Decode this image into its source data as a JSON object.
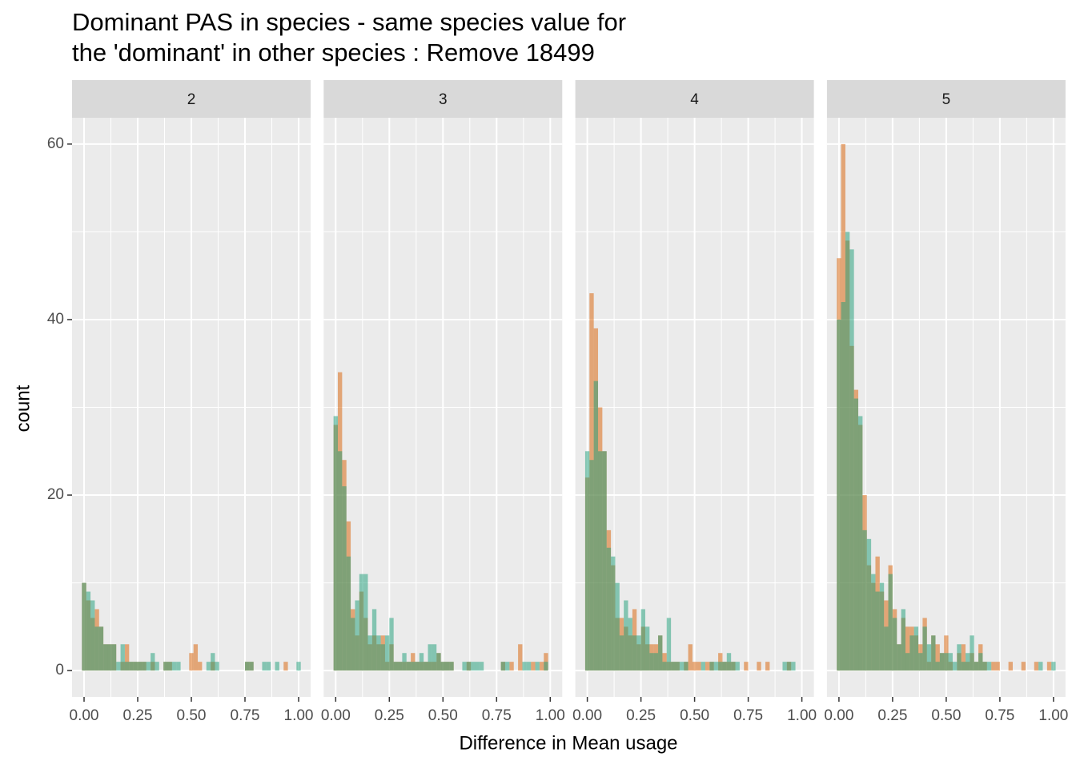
{
  "title": [
    "Dominant PAS in species - same species value for",
    "the 'dominant' in other species : Remove 18499"
  ],
  "x_label": "Difference in Mean usage",
  "y_label": "count",
  "chart_data": [
    {
      "type": "histogram",
      "facet": "2",
      "bins": [
        -0.01,
        0.01,
        0.03,
        0.05,
        0.07,
        0.09,
        0.11,
        0.13,
        0.15,
        0.17,
        0.19,
        0.21,
        0.23,
        0.25,
        0.27,
        0.29,
        0.31,
        0.33,
        0.35,
        0.37,
        0.39,
        0.41,
        0.43,
        0.45,
        0.47,
        0.49,
        0.51,
        0.53,
        0.55,
        0.57,
        0.59,
        0.61,
        0.63,
        0.65,
        0.67,
        0.69,
        0.71,
        0.73,
        0.75,
        0.77,
        0.79,
        0.81,
        0.83,
        0.85,
        0.87,
        0.89,
        0.91,
        0.93,
        0.95,
        0.97,
        0.99,
        1.01
      ],
      "series": [
        {
          "color": "#D95F02",
          "opacity": 0.5,
          "values": [
            10,
            8,
            6,
            7,
            5,
            3,
            3,
            3,
            0,
            1,
            3,
            1,
            1,
            1,
            1,
            0,
            1,
            0,
            0,
            1,
            1,
            0,
            0,
            0,
            0,
            2,
            3,
            1,
            0,
            0,
            1,
            0,
            0,
            0,
            0,
            0,
            0,
            0,
            1,
            1,
            0,
            0,
            0,
            0,
            0,
            0,
            0,
            1,
            0,
            0,
            0
          ]
        },
        {
          "color": "#1B9E77",
          "opacity": 0.5,
          "values": [
            10,
            9,
            8,
            5,
            5,
            3,
            3,
            3,
            1,
            3,
            1,
            1,
            1,
            1,
            1,
            1,
            2,
            1,
            0,
            1,
            1,
            1,
            1,
            0,
            0,
            0,
            0,
            0,
            0,
            1,
            2,
            1,
            0,
            0,
            0,
            0,
            0,
            0,
            1,
            1,
            0,
            0,
            1,
            1,
            0,
            1,
            0,
            0,
            0,
            0,
            1
          ]
        }
      ],
      "xlim": [
        -0.056,
        1.056
      ],
      "xticks": [
        {
          "value": 0,
          "label": "0.00"
        },
        {
          "value": 0.25,
          "label": "0.25"
        },
        {
          "value": 0.5,
          "label": "0.50"
        },
        {
          "value": 0.75,
          "label": "0.75"
        },
        {
          "value": 1,
          "label": "1.00"
        }
      ],
      "ylim": [
        -3,
        63
      ],
      "yticks": [
        0,
        20,
        40,
        60
      ],
      "grid": true,
      "minor_grid": true
    },
    {
      "type": "histogram",
      "facet": "3",
      "bins": [
        -0.01,
        0.01,
        0.03,
        0.05,
        0.07,
        0.09,
        0.11,
        0.13,
        0.15,
        0.17,
        0.19,
        0.21,
        0.23,
        0.25,
        0.27,
        0.29,
        0.31,
        0.33,
        0.35,
        0.37,
        0.39,
        0.41,
        0.43,
        0.45,
        0.47,
        0.49,
        0.51,
        0.53,
        0.55,
        0.57,
        0.59,
        0.61,
        0.63,
        0.65,
        0.67,
        0.69,
        0.71,
        0.73,
        0.75,
        0.77,
        0.79,
        0.81,
        0.83,
        0.85,
        0.87,
        0.89,
        0.91,
        0.93,
        0.95,
        0.97,
        0.99,
        1.01
      ],
      "series": [
        {
          "color": "#D95F02",
          "opacity": 0.5,
          "values": [
            28,
            34,
            24,
            17,
            7,
            4,
            9,
            6,
            3,
            4,
            3,
            4,
            1,
            3,
            1,
            1,
            1,
            1,
            2,
            1,
            1,
            1,
            1,
            1,
            2,
            1,
            1,
            1,
            0,
            0,
            0,
            1,
            0,
            0,
            0,
            0,
            0,
            0,
            0,
            1,
            0,
            1,
            0,
            3,
            0,
            0,
            1,
            0,
            1,
            2,
            0
          ]
        },
        {
          "color": "#1B9E77",
          "opacity": 0.5,
          "values": [
            29,
            25,
            21,
            13,
            6,
            8,
            11,
            11,
            4,
            7,
            4,
            3,
            4,
            6,
            1,
            1,
            2,
            1,
            1,
            1,
            2,
            1,
            3,
            3,
            2,
            1,
            1,
            1,
            0,
            0,
            1,
            1,
            1,
            1,
            1,
            0,
            0,
            0,
            0,
            1,
            1,
            0,
            0,
            0,
            1,
            1,
            0,
            1,
            0,
            1,
            0
          ]
        }
      ],
      "xlim": [
        -0.056,
        1.056
      ],
      "xticks": [
        {
          "value": 0,
          "label": "0.00"
        },
        {
          "value": 0.25,
          "label": "0.25"
        },
        {
          "value": 0.5,
          "label": "0.50"
        },
        {
          "value": 0.75,
          "label": "0.75"
        },
        {
          "value": 1,
          "label": "1.00"
        }
      ],
      "ylim": [
        -3,
        63
      ],
      "yticks": [
        0,
        20,
        40,
        60
      ],
      "grid": true,
      "minor_grid": true
    },
    {
      "type": "histogram",
      "facet": "4",
      "bins": [
        -0.01,
        0.01,
        0.03,
        0.05,
        0.07,
        0.09,
        0.11,
        0.13,
        0.15,
        0.17,
        0.19,
        0.21,
        0.23,
        0.25,
        0.27,
        0.29,
        0.31,
        0.33,
        0.35,
        0.37,
        0.39,
        0.41,
        0.43,
        0.45,
        0.47,
        0.49,
        0.51,
        0.53,
        0.55,
        0.57,
        0.59,
        0.61,
        0.63,
        0.65,
        0.67,
        0.69,
        0.71,
        0.73,
        0.75,
        0.77,
        0.79,
        0.81,
        0.83,
        0.85,
        0.87,
        0.89,
        0.91,
        0.93,
        0.95,
        0.97,
        0.99,
        1.01
      ],
      "series": [
        {
          "color": "#D95F02",
          "opacity": 0.5,
          "values": [
            22,
            43,
            39,
            30,
            25,
            16,
            12,
            6,
            6,
            5,
            4,
            7,
            3,
            5,
            3,
            3,
            3,
            4,
            2,
            1,
            1,
            1,
            0,
            1,
            3,
            1,
            1,
            0,
            1,
            1,
            0,
            2,
            1,
            1,
            1,
            0,
            0,
            1,
            0,
            0,
            1,
            0,
            1,
            0,
            0,
            0,
            0,
            1,
            0,
            0,
            0
          ]
        },
        {
          "color": "#1B9E77",
          "opacity": 0.5,
          "values": [
            25,
            24,
            33,
            25,
            25,
            14,
            13,
            10,
            4,
            8,
            6,
            4,
            4,
            7,
            5,
            2,
            2,
            4,
            1,
            6,
            1,
            1,
            1,
            1,
            0,
            0,
            0,
            1,
            0,
            1,
            1,
            1,
            1,
            2,
            1,
            1,
            0,
            0,
            0,
            0,
            0,
            0,
            0,
            0,
            0,
            0,
            1,
            1,
            1,
            0,
            0
          ]
        }
      ],
      "xlim": [
        -0.056,
        1.056
      ],
      "xticks": [
        {
          "value": 0,
          "label": "0.00"
        },
        {
          "value": 0.25,
          "label": "0.25"
        },
        {
          "value": 0.5,
          "label": "0.50"
        },
        {
          "value": 0.75,
          "label": "0.75"
        },
        {
          "value": 1,
          "label": "1.00"
        }
      ],
      "ylim": [
        -3,
        63
      ],
      "yticks": [
        0,
        20,
        40,
        60
      ],
      "grid": true,
      "minor_grid": true
    },
    {
      "type": "histogram",
      "facet": "5",
      "bins": [
        -0.01,
        0.01,
        0.03,
        0.05,
        0.07,
        0.09,
        0.11,
        0.13,
        0.15,
        0.17,
        0.19,
        0.21,
        0.23,
        0.25,
        0.27,
        0.29,
        0.31,
        0.33,
        0.35,
        0.37,
        0.39,
        0.41,
        0.43,
        0.45,
        0.47,
        0.49,
        0.51,
        0.53,
        0.55,
        0.57,
        0.59,
        0.61,
        0.63,
        0.65,
        0.67,
        0.69,
        0.71,
        0.73,
        0.75,
        0.77,
        0.79,
        0.81,
        0.83,
        0.85,
        0.87,
        0.89,
        0.91,
        0.93,
        0.95,
        0.97,
        0.99,
        1.01
      ],
      "series": [
        {
          "color": "#D95F02",
          "opacity": 0.5,
          "values": [
            47,
            60,
            49,
            37,
            32,
            28,
            20,
            12,
            10,
            13,
            9,
            8,
            12,
            7,
            3,
            6,
            5,
            5,
            4,
            3,
            6,
            1,
            4,
            3,
            2,
            4,
            1,
            0,
            2,
            3,
            1,
            2,
            1,
            3,
            1,
            0,
            1,
            1,
            0,
            0,
            1,
            0,
            0,
            1,
            0,
            0,
            1,
            0,
            0,
            1,
            0
          ]
        },
        {
          "color": "#1B9E77",
          "opacity": 0.5,
          "values": [
            40,
            42,
            50,
            48,
            31,
            29,
            16,
            15,
            11,
            9,
            10,
            5,
            11,
            6,
            3,
            7,
            2,
            4,
            5,
            2,
            5,
            3,
            4,
            1,
            2,
            2,
            2,
            1,
            3,
            1,
            2,
            4,
            1,
            2,
            1,
            1,
            0,
            0,
            0,
            0,
            0,
            0,
            0,
            0,
            0,
            0,
            0,
            1,
            0,
            0,
            1
          ]
        }
      ],
      "xlim": [
        -0.056,
        1.056
      ],
      "xticks": [
        {
          "value": 0,
          "label": "0.00"
        },
        {
          "value": 0.25,
          "label": "0.25"
        },
        {
          "value": 0.5,
          "label": "0.50"
        },
        {
          "value": 0.75,
          "label": "0.75"
        },
        {
          "value": 1,
          "label": "1.00"
        }
      ],
      "ylim": [
        -3,
        63
      ],
      "yticks": [
        0,
        20,
        40,
        60
      ],
      "grid": true,
      "minor_grid": true
    }
  ]
}
